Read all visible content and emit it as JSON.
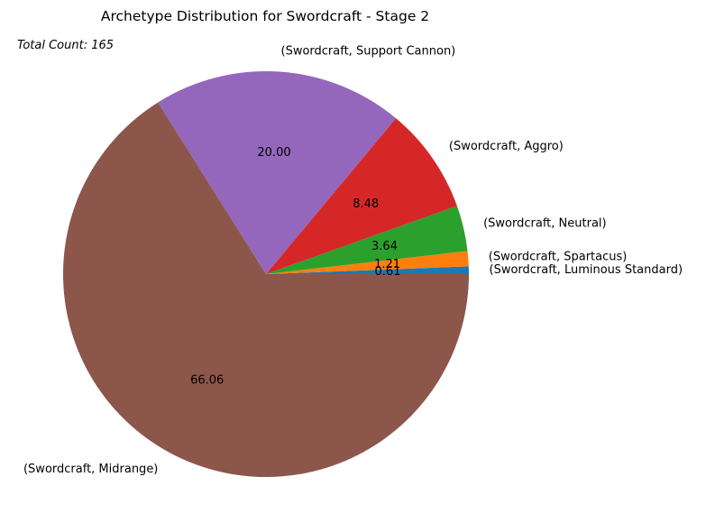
{
  "chart_data": {
    "type": "pie",
    "title": "Archetype Distribution for Swordcraft - Stage 2",
    "annotation": "Total Count: 165",
    "slices": [
      {
        "label": "(Swordcraft, Luminous Standard)",
        "value": 0.61,
        "pct_label": "0.61",
        "color": "#1f77b4"
      },
      {
        "label": "(Swordcraft, Spartacus)",
        "value": 1.21,
        "pct_label": "1.21",
        "color": "#ff7f0e"
      },
      {
        "label": "(Swordcraft, Neutral)",
        "value": 3.64,
        "pct_label": "3.64",
        "color": "#2ca02c"
      },
      {
        "label": "(Swordcraft, Aggro)",
        "value": 8.48,
        "pct_label": "8.48",
        "color": "#d62728"
      },
      {
        "label": "(Swordcraft, Support Cannon)",
        "value": 20.0,
        "pct_label": "20.00",
        "color": "#9467bd"
      },
      {
        "label": "(Swordcraft, Midrange)",
        "value": 66.06,
        "pct_label": "66.06",
        "color": "#8c564b"
      }
    ],
    "start_angle": 0,
    "direction": "counterclockwise"
  }
}
